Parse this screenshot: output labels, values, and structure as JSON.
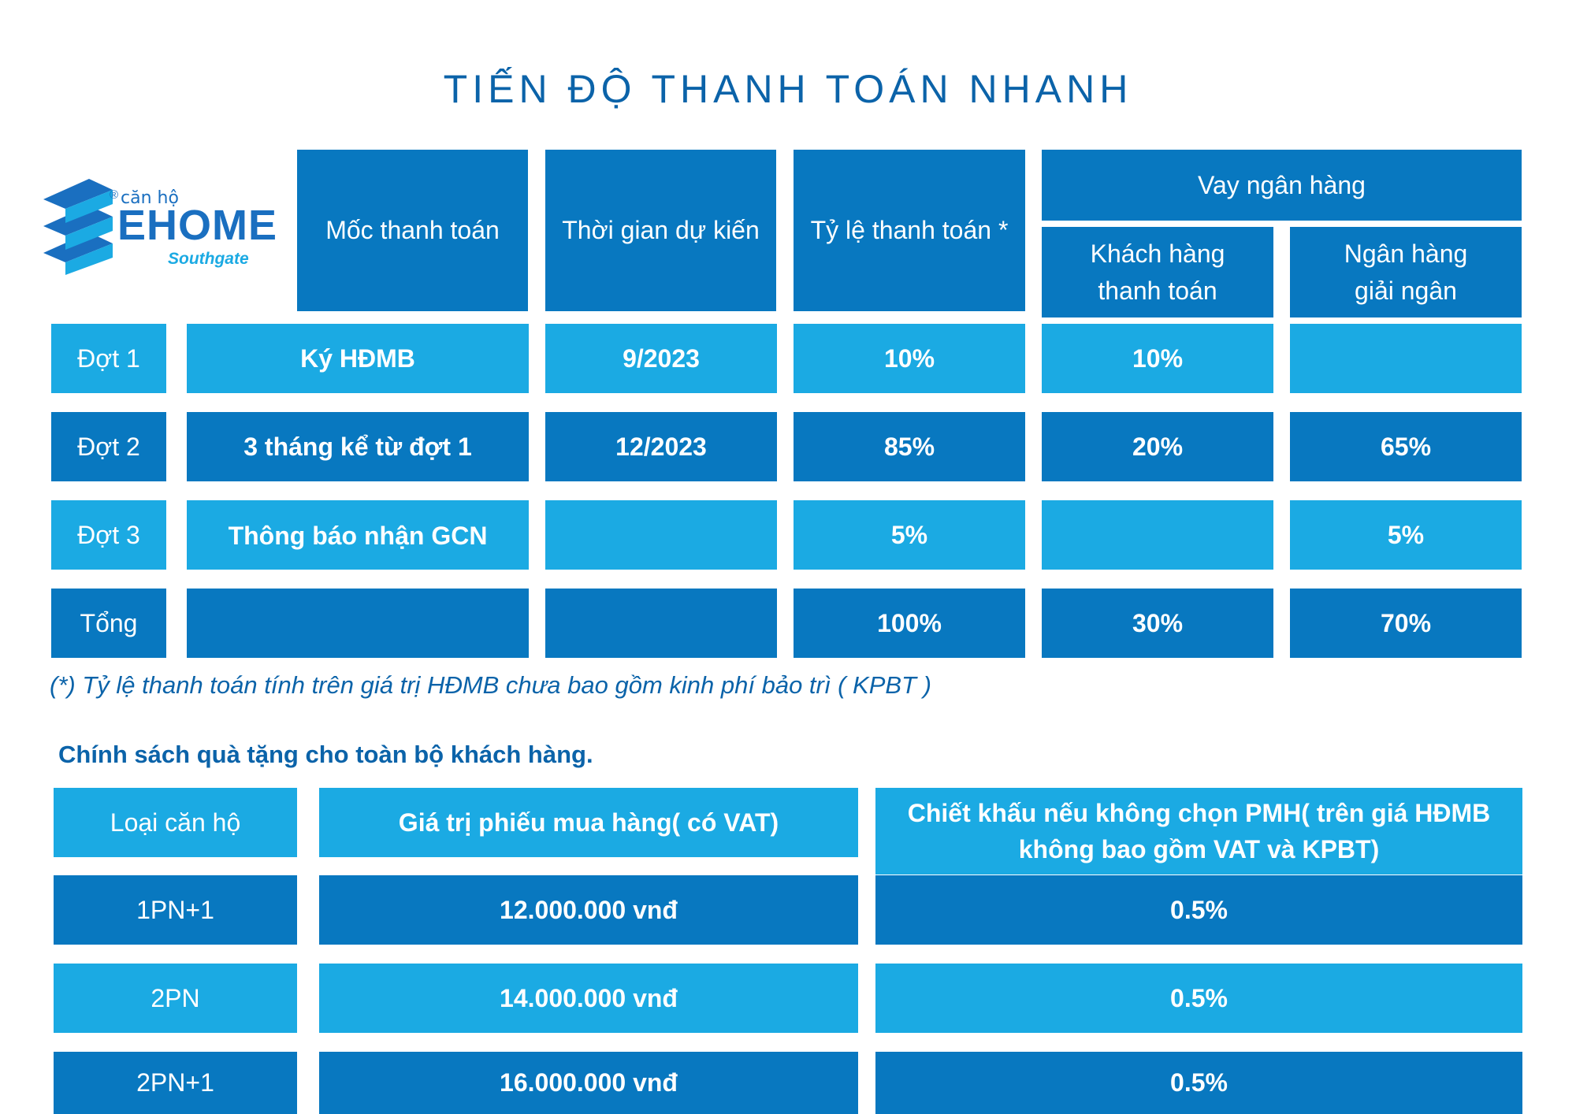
{
  "title": "TIẾN ĐỘ THANH TOÁN NHANH",
  "logo": {
    "top_text": "căn hộ",
    "brand": "EHOME",
    "sub": "Southgate",
    "registered": "®"
  },
  "payment_table": {
    "headers": {
      "milestone": "Mốc thanh toán",
      "expected_time": "Thời gian dự kiến",
      "payment_rate": "Tỷ lệ thanh toán *",
      "bank_loan": "Vay ngân hàng",
      "customer_pays": "Khách hàng\nthanh toán",
      "bank_disburses": "Ngân hàng\ngiải ngân"
    },
    "rows": [
      {
        "stage": "Đợt 1",
        "milestone": "Ký HĐMB",
        "time": "9/2023",
        "rate": "10%",
        "customer": "10%",
        "bank": ""
      },
      {
        "stage": "Đợt 2",
        "milestone": "3 tháng kể từ đợt 1",
        "time": "12/2023",
        "rate": "85%",
        "customer": "20%",
        "bank": "65%"
      },
      {
        "stage": "Đợt 3",
        "milestone": "Thông báo nhận GCN",
        "time": "",
        "rate": "5%",
        "customer": "",
        "bank": "5%"
      },
      {
        "stage": "Tổng",
        "milestone": "",
        "time": "",
        "rate": "100%",
        "customer": "30%",
        "bank": "70%"
      }
    ]
  },
  "note": "(*) Tỷ lệ thanh toán tính trên giá trị HĐMB chưa bao gồm kinh phí bảo trì ( KPBT )",
  "gift_policy": {
    "heading": "Chính sách quà tặng cho toàn bộ khách hàng.",
    "headers": {
      "apartment_type": "Loại căn hộ",
      "voucher_value": "Giá trị phiếu mua hàng( có VAT)",
      "discount": "Chiết khấu nếu không chọn PMH( trên giá HĐMB\nkhông bao gồm VAT và KPBT)"
    },
    "rows": [
      {
        "type": "1PN+1",
        "voucher": "12.000.000 vnđ",
        "discount": "0.5%"
      },
      {
        "type": "2PN",
        "voucher": "14.000.000 vnđ",
        "discount": "0.5%"
      },
      {
        "type": "2PN+1",
        "voucher": "16.000.000 vnđ",
        "discount": "0.5%"
      }
    ]
  },
  "colors": {
    "dark_blue": "#0878c0",
    "light_blue": "#1baae3",
    "title_blue": "#0b63a9",
    "logo_blue": "#1a6fc0"
  }
}
